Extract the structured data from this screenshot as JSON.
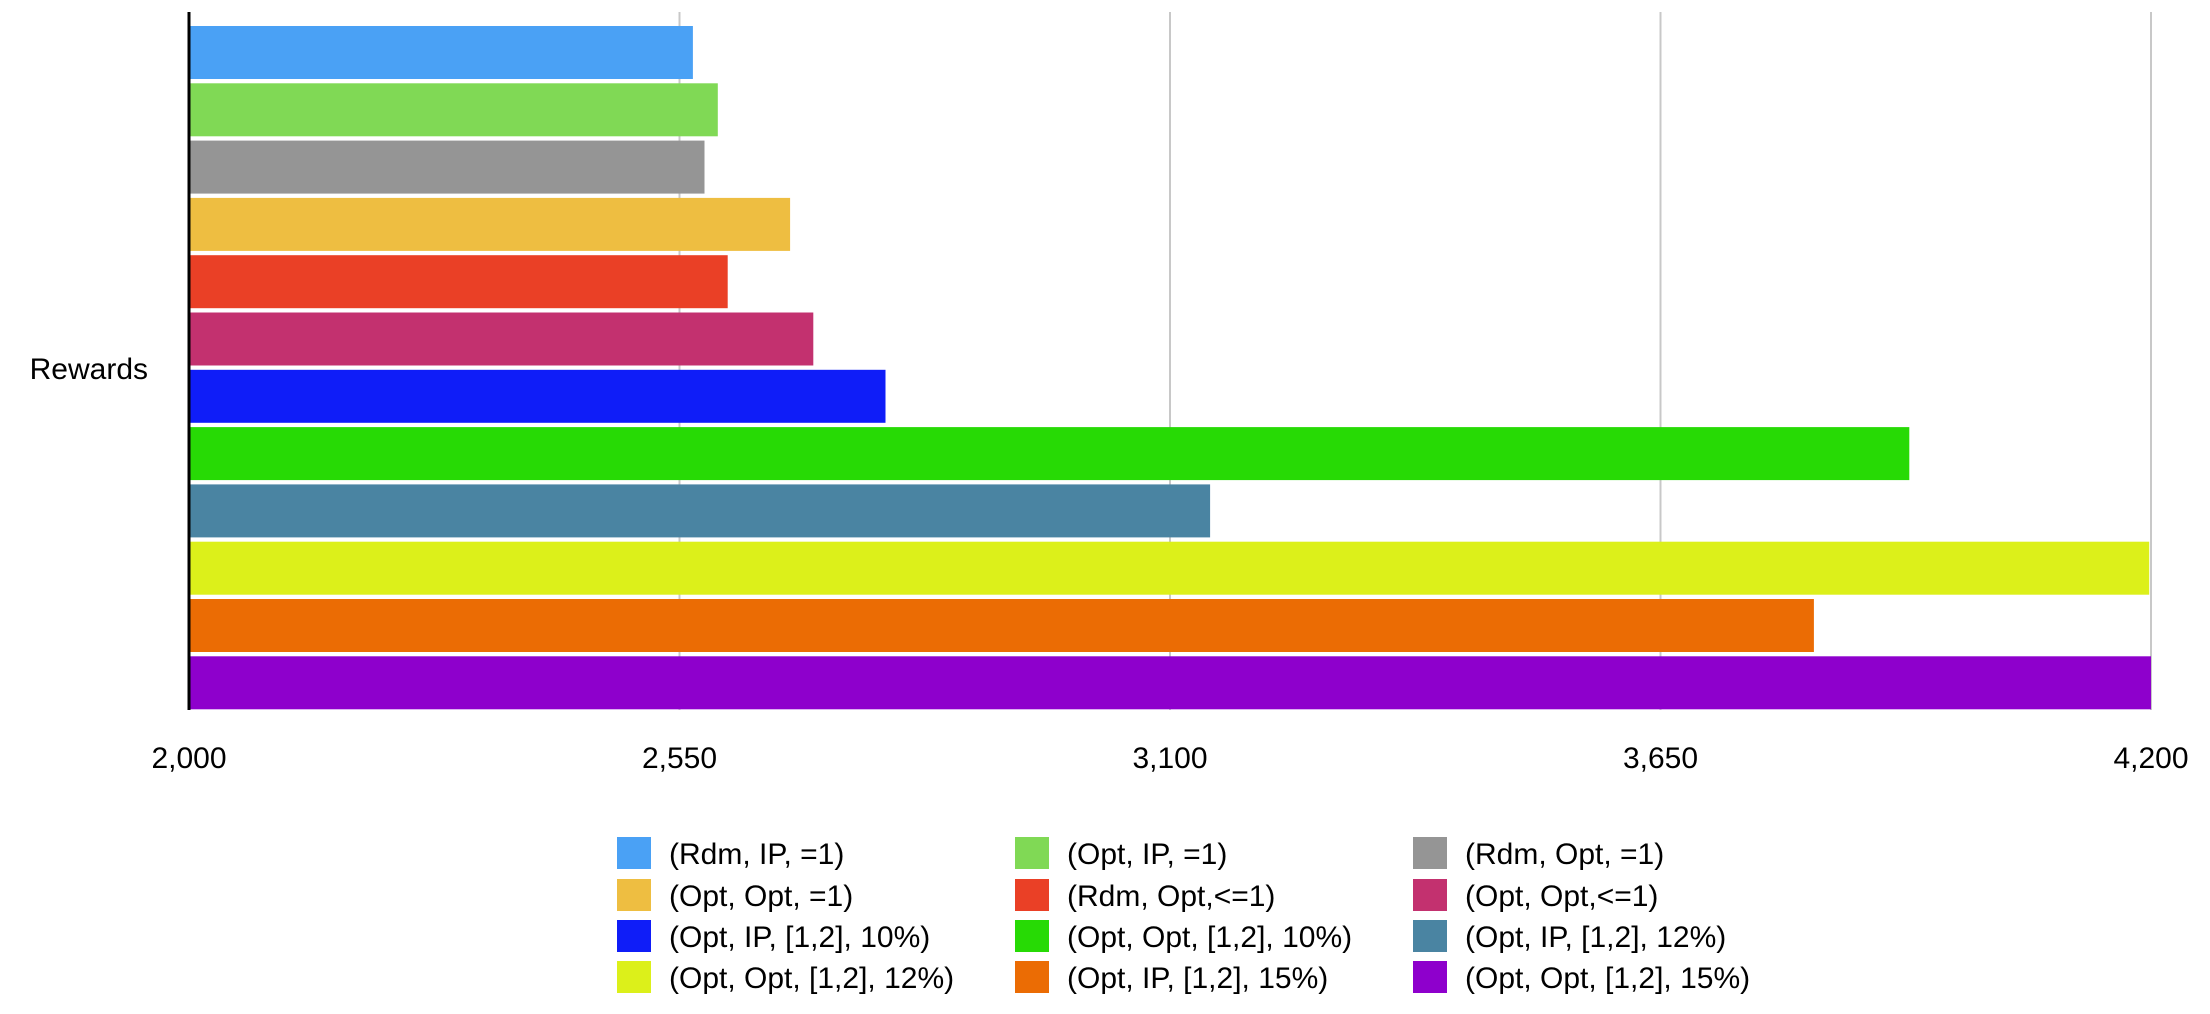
{
  "chart_data": {
    "type": "bar",
    "orientation": "horizontal",
    "categories": [
      "Rewards"
    ],
    "xlim": [
      2000,
      4200
    ],
    "xticks": [
      "2,000",
      "2,550",
      "3,100",
      "3,650",
      "4,200"
    ],
    "xtick_values": [
      2000,
      2550,
      3100,
      3650,
      4200
    ],
    "grid": true,
    "legend_position": "bottom",
    "series": [
      {
        "name": "(Rdm, IP, =1)",
        "value": 2565,
        "color": "#4AA1F5"
      },
      {
        "name": "(Opt, IP, =1)",
        "value": 2593,
        "color": "#80D955"
      },
      {
        "name": "(Rdm, Opt, =1)",
        "value": 2578,
        "color": "#959595"
      },
      {
        "name": "(Opt, Opt, =1)",
        "value": 2674,
        "color": "#EEBE41"
      },
      {
        "name": "(Rdm, Opt,<=1)",
        "value": 2604,
        "color": "#EA4026"
      },
      {
        "name": "(Opt, Opt,<=1)",
        "value": 2700,
        "color": "#C3316F"
      },
      {
        "name": "(Opt, IP, [1,2], 10%)",
        "value": 2781,
        "color": "#0F1DF8"
      },
      {
        "name": "(Opt, Opt, [1,2], 10%)",
        "value": 3929,
        "color": "#27DA05"
      },
      {
        "name": "(Opt, IP, [1,2], 12%)",
        "value": 3145,
        "color": "#4A84A2"
      },
      {
        "name": "(Opt, Opt, [1,2], 12%)",
        "value": 4198,
        "color": "#DCF01A"
      },
      {
        "name": "(Opt, IP, [1,2], 15%)",
        "value": 3822,
        "color": "#EB6C04"
      },
      {
        "name": "(Opt, Opt, [1,2], 15%)",
        "value": 4200,
        "color": "#8E00CC"
      }
    ]
  }
}
